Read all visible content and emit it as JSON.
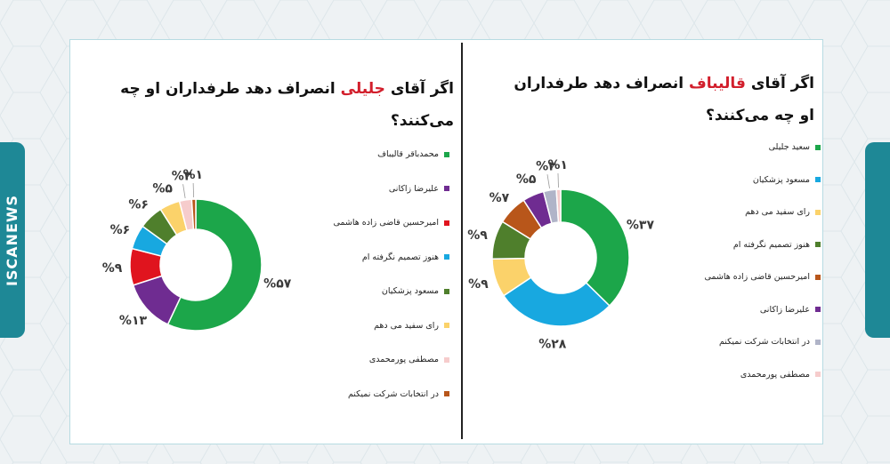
{
  "brand": {
    "name": "ISCANEWS"
  },
  "colors": {
    "background": "#eef2f4",
    "accent": "#1e8896",
    "highlight": "#d21f2c"
  },
  "chart_data": [
    {
      "type": "pie",
      "donut": true,
      "title_prefix": "اگر آقای",
      "title_highlight": "جلیلی",
      "title_suffix": "انصراف دهد طرفداران او چه می‌کنند؟",
      "slices": [
        {
          "name": "محمدباقر قالیباف",
          "value": 57,
          "label": "%۵۷",
          "color": "#1ca64a"
        },
        {
          "name": "علیرضا زاکانی",
          "value": 13,
          "label": "%۱۳",
          "color": "#6f2c91"
        },
        {
          "name": "امیرحسین قاضی زاده هاشمی",
          "value": 9,
          "label": "%۹",
          "color": "#e0141e"
        },
        {
          "name": "هنوز تصمیم نگرفته ام",
          "value": 6,
          "label": "%۶",
          "color": "#18a8e0"
        },
        {
          "name": "مسعود پزشکیان",
          "value": 6,
          "label": "%۶",
          "color": "#4f7f2c"
        },
        {
          "name": "رای سفید می دهم",
          "value": 5,
          "label": "%۵",
          "color": "#fbd26a"
        },
        {
          "name": "مصطفی پورمحمدی",
          "value": 3,
          "label": "%۳",
          "color": "#f6cccc"
        },
        {
          "name": "در انتخابات شرکت نمیکنم",
          "value": 1,
          "label": "%۱",
          "color": "#b8561a"
        }
      ]
    },
    {
      "type": "pie",
      "donut": true,
      "title_prefix": "اگر آقای",
      "title_highlight": "قالیباف",
      "title_suffix": "انصراف دهد طرفداران او چه می‌کنند؟",
      "slices": [
        {
          "name": "سعید جلیلی",
          "value": 37,
          "label": "%۳۷",
          "color": "#1ca64a"
        },
        {
          "name": "مسعود پزشکیان",
          "value": 28,
          "label": "%۲۸",
          "color": "#18a8e0"
        },
        {
          "name": "رای سفید می دهم",
          "value": 9,
          "label": "%۹",
          "color": "#fbd26a"
        },
        {
          "name": "هنوز تصمیم نگرفته ام",
          "value": 9,
          "label": "%۹",
          "color": "#4f7f2c"
        },
        {
          "name": "امیرحسین قاضی زاده هاشمی",
          "value": 7,
          "label": "%۷",
          "color": "#b8561a"
        },
        {
          "name": "علیرضا زاکانی",
          "value": 5,
          "label": "%۵",
          "color": "#6f2c91"
        },
        {
          "name": "در انتخابات شرکت نمیکنم",
          "value": 3,
          "label": "%۳",
          "color": "#b0b4c8"
        },
        {
          "name": "مصطفی پورمحمدی",
          "value": 1,
          "label": "%۱",
          "color": "#f6cccc"
        }
      ]
    }
  ]
}
